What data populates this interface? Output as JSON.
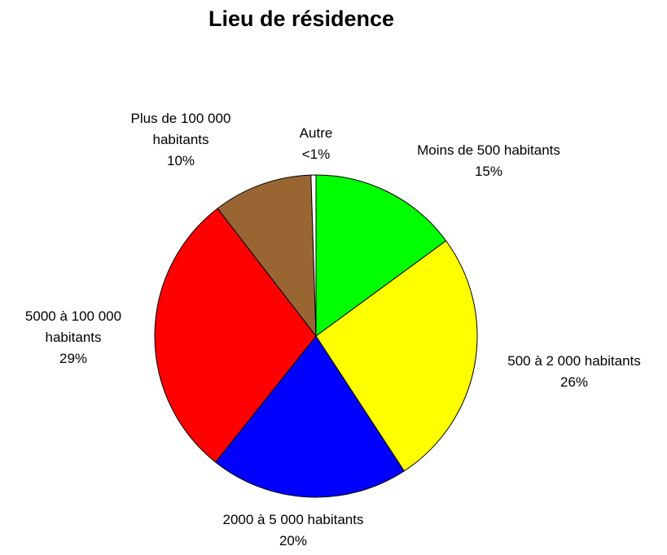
{
  "chart_data": {
    "type": "pie",
    "title": "Lieu de résidence",
    "categories": [
      "Moins de 500 habitants",
      "500 à 2 000 habitants",
      "2000 à 5 000 habitants",
      "5000 à 100 000 habitants",
      "Plus de 100 000 habitants",
      "Autre"
    ],
    "values": [
      15,
      26,
      20,
      29,
      10,
      0.5
    ],
    "value_labels": [
      "15%",
      "26%",
      "20%",
      "29%",
      "10%",
      "<1%"
    ],
    "colors": [
      "#00ff00",
      "#ffff00",
      "#0000ff",
      "#ff0000",
      "#996633",
      "#ffffff"
    ]
  }
}
